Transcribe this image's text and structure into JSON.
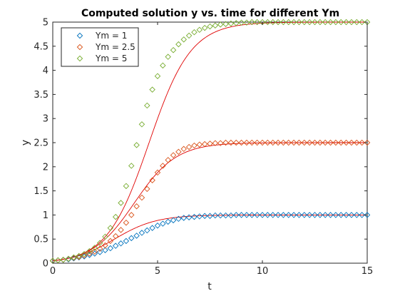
{
  "chart_data": {
    "type": "scatter",
    "title": "Computed solution y vs. time for different Ym",
    "xlabel": "t",
    "ylabel": "y",
    "xlim": [
      0,
      15
    ],
    "ylim": [
      0,
      5
    ],
    "xticks": [
      0,
      5,
      10,
      15
    ],
    "yticks": [
      0,
      0.5,
      1,
      1.5,
      2,
      2.5,
      3,
      3.5,
      4,
      4.5,
      5
    ],
    "xtick_labels": [
      "0",
      "5",
      "10",
      "15"
    ],
    "ytick_labels": [
      "0",
      "0.5",
      "1",
      "1.5",
      "2",
      "2.5",
      "3",
      "3.5",
      "4",
      "4.5",
      "5"
    ],
    "grid": false,
    "legend_position": "top-left",
    "marker": "diamond",
    "x": [
      0,
      0.25,
      0.5,
      0.75,
      1,
      1.25,
      1.5,
      1.75,
      2,
      2.25,
      2.5,
      2.75,
      3,
      3.25,
      3.5,
      3.75,
      4,
      4.25,
      4.5,
      4.75,
      5,
      5.25,
      5.5,
      5.75,
      6,
      6.25,
      6.5,
      6.75,
      7,
      7.25,
      7.5,
      7.75,
      8,
      8.25,
      8.5,
      8.75,
      9,
      9.25,
      9.5,
      9.75,
      10,
      10.25,
      10.5,
      10.75,
      11,
      11.25,
      11.5,
      11.75,
      12,
      12.25,
      12.5,
      12.75,
      13,
      13.25,
      13.5,
      13.75,
      14,
      14.25,
      14.5,
      14.75,
      15
    ],
    "series": [
      {
        "name": "Ym = 1",
        "color": "#0072BD",
        "values": [
          0.05,
          0.06,
          0.07,
          0.08,
          0.1,
          0.12,
          0.14,
          0.17,
          0.2,
          0.23,
          0.27,
          0.31,
          0.36,
          0.41,
          0.46,
          0.52,
          0.57,
          0.63,
          0.68,
          0.73,
          0.78,
          0.82,
          0.86,
          0.89,
          0.92,
          0.94,
          0.95,
          0.96,
          0.97,
          0.98,
          0.98,
          0.99,
          0.99,
          0.99,
          0.99,
          1,
          1,
          1,
          1,
          1,
          1,
          1,
          1,
          1,
          1,
          1,
          1,
          1,
          1,
          1,
          1,
          1,
          1,
          1,
          1,
          1,
          1,
          1,
          1,
          1,
          1
        ]
      },
      {
        "name": "Ym = 2.5",
        "color": "#D95319",
        "values": [
          0.05,
          0.06,
          0.07,
          0.09,
          0.11,
          0.13,
          0.16,
          0.2,
          0.24,
          0.3,
          0.37,
          0.46,
          0.56,
          0.69,
          0.84,
          1.0,
          1.18,
          1.36,
          1.54,
          1.72,
          1.88,
          2.02,
          2.14,
          2.24,
          2.31,
          2.37,
          2.41,
          2.44,
          2.46,
          2.47,
          2.48,
          2.49,
          2.49,
          2.5,
          2.5,
          2.5,
          2.5,
          2.5,
          2.5,
          2.5,
          2.5,
          2.5,
          2.5,
          2.5,
          2.5,
          2.5,
          2.5,
          2.5,
          2.5,
          2.5,
          2.5,
          2.5,
          2.5,
          2.5,
          2.5,
          2.5,
          2.5,
          2.5,
          2.5,
          2.5,
          2.5
        ]
      },
      {
        "name": "Ym = 5",
        "color": "#77AC30",
        "values": [
          0.05,
          0.06,
          0.07,
          0.09,
          0.12,
          0.15,
          0.19,
          0.25,
          0.32,
          0.42,
          0.55,
          0.73,
          0.96,
          1.25,
          1.6,
          2.02,
          2.45,
          2.88,
          3.27,
          3.6,
          3.88,
          4.1,
          4.28,
          4.42,
          4.54,
          4.64,
          4.72,
          4.79,
          4.84,
          4.88,
          4.91,
          4.93,
          4.95,
          4.96,
          4.97,
          4.98,
          4.99,
          4.99,
          5,
          5,
          5,
          5,
          5,
          5,
          5,
          5,
          5,
          5,
          5,
          5,
          5,
          5,
          5,
          5,
          5,
          5,
          5,
          5,
          5,
          5,
          5
        ]
      }
    ],
    "reference_curves": {
      "color": "#E00000",
      "asymptotes": [
        1,
        2.5,
        5
      ],
      "initial_value": 0.05,
      "rate": 1
    }
  }
}
